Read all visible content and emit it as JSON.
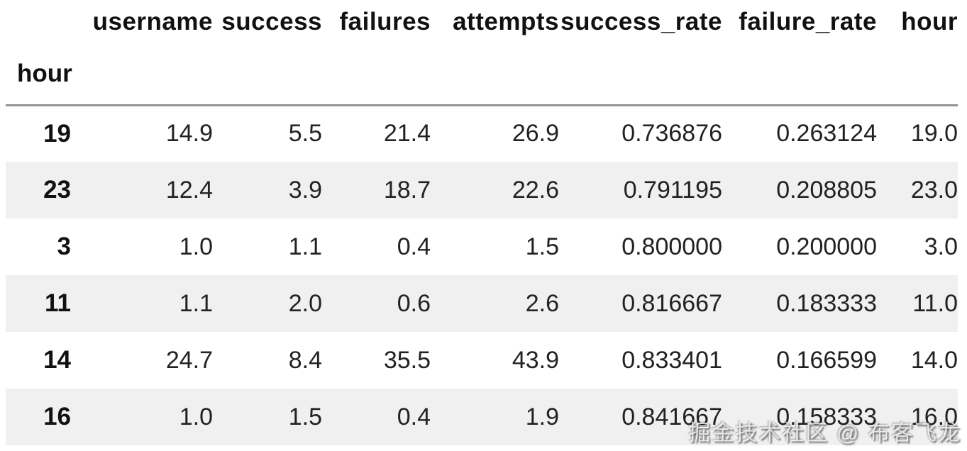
{
  "chart_data": {
    "type": "table",
    "title": "",
    "index_label": "hour",
    "columns": [
      "username",
      "success",
      "failures",
      "attempts",
      "success_rate",
      "failure_rate",
      "hour"
    ],
    "rows": [
      {
        "index": "19",
        "values": [
          "14.9",
          "5.5",
          "21.4",
          "26.9",
          "0.736876",
          "0.263124",
          "19.0"
        ]
      },
      {
        "index": "23",
        "values": [
          "12.4",
          "3.9",
          "18.7",
          "22.6",
          "0.791195",
          "0.208805",
          "23.0"
        ]
      },
      {
        "index": "3",
        "values": [
          "1.0",
          "1.1",
          "0.4",
          "1.5",
          "0.800000",
          "0.200000",
          "3.0"
        ]
      },
      {
        "index": "11",
        "values": [
          "1.1",
          "2.0",
          "0.6",
          "2.6",
          "0.816667",
          "0.183333",
          "11.0"
        ]
      },
      {
        "index": "14",
        "values": [
          "24.7",
          "8.4",
          "35.5",
          "43.9",
          "0.833401",
          "0.166599",
          "14.0"
        ]
      },
      {
        "index": "16",
        "values": [
          "1.0",
          "1.5",
          "0.4",
          "1.9",
          "0.841667",
          "0.158333",
          "16.0"
        ]
      }
    ],
    "layout": {
      "stripe_color": "#f0f0f0",
      "header_rule_color": "#949494",
      "row_striping": "even rows shaded",
      "alignment": "numeric right-aligned, index-name left-aligned"
    }
  },
  "watermark": {
    "text": "掘金技术社区 @ 布客飞龙"
  }
}
